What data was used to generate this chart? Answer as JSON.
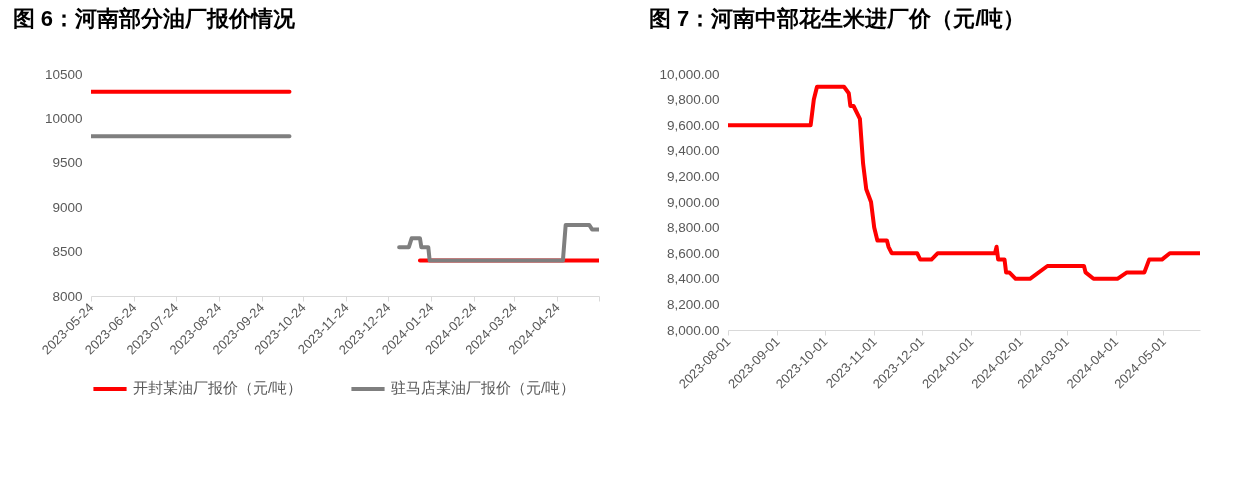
{
  "chart_data": [
    {
      "type": "line",
      "title": "图 6：河南部分油厂报价情况",
      "series": [
        {
          "name": "开封某油厂报价（元/吨）",
          "color": "#ff0000",
          "x": [
            "2023-05-24",
            "2023-10-14",
            "2023-10-15",
            "2024-01-16",
            "2024-05-24"
          ],
          "values": [
            10300,
            10300,
            null,
            8400,
            8400
          ]
        },
        {
          "name": "驻马店某油厂报价（元/吨）",
          "color": "#7f7f7f",
          "x": [
            "2023-05-24",
            "2023-10-14",
            "2023-10-15",
            "2024-01-01",
            "2024-01-08",
            "2024-01-10",
            "2024-01-16",
            "2024-01-17",
            "2024-01-22",
            "2024-01-23",
            "2024-04-28",
            "2024-04-30",
            "2024-05-17",
            "2024-05-19",
            "2024-05-24"
          ],
          "values": [
            9800,
            9800,
            null,
            8550,
            8550,
            8650,
            8650,
            8550,
            8550,
            8400,
            8400,
            8800,
            8800,
            8750,
            8750
          ]
        }
      ],
      "xlim": [
        "2023-05-24",
        "2024-05-24"
      ],
      "xticks": [
        "2023-05-24",
        "2023-06-24",
        "2023-07-24",
        "2023-08-24",
        "2023-09-24",
        "2023-10-24",
        "2023-11-24",
        "2023-12-24",
        "2024-01-24",
        "2024-02-24",
        "2024-03-24",
        "2024-04-24",
        {
          "value": "2024-05-24",
          "label": null
        }
      ],
      "ylim": [
        8000,
        10500
      ],
      "yticks": [
        8000,
        8500,
        9000,
        9500,
        10000,
        10500
      ],
      "legend": "bottom"
    },
    {
      "type": "line",
      "title": "图 7：河南中部花生米进厂价（元/吨）",
      "x": [
        "2023-08-01",
        "2023-09-22",
        "2023-09-24",
        "2023-09-26",
        "2023-10-13",
        "2023-10-16",
        "2023-10-17",
        "2023-10-19",
        "2023-10-23",
        "2023-10-25",
        "2023-10-27",
        "2023-10-30",
        "2023-11-01",
        "2023-11-03",
        "2023-11-09",
        "2023-11-10",
        "2023-11-12",
        "2023-11-28",
        "2023-11-30",
        "2023-12-07",
        "2023-12-11",
        "2024-01-16",
        "2024-01-17",
        "2024-01-18",
        "2024-01-22",
        "2024-01-23",
        "2024-01-25",
        "2024-01-29",
        "2024-02-07",
        "2024-02-18",
        "2024-03-12",
        "2024-03-13",
        "2024-03-18",
        "2024-04-02",
        "2024-04-08",
        "2024-04-19",
        "2024-04-22",
        "2024-04-30",
        "2024-05-05",
        "2024-05-24"
      ],
      "series": [
        {
          "color": "#ff0000",
          "values": [
            9600,
            9600,
            9800,
            9900,
            9900,
            9850,
            9750,
            9750,
            9650,
            9300,
            9100,
            9000,
            8800,
            8700,
            8700,
            8650,
            8600,
            8600,
            8550,
            8550,
            8600,
            8600,
            8650,
            8550,
            8550,
            8450,
            8450,
            8400,
            8400,
            8500,
            8500,
            8450,
            8400,
            8400,
            8450,
            8450,
            8550,
            8550,
            8600,
            8600
          ]
        }
      ],
      "xlim": [
        "2023-08-01",
        "2024-05-24"
      ],
      "xticks": [
        "2023-08-01",
        "2023-09-01",
        "2023-10-01",
        "2023-11-01",
        "2023-12-01",
        "2024-01-01",
        "2024-02-01",
        "2024-03-01",
        "2024-04-01",
        "2024-05-01"
      ],
      "ylim": [
        8000,
        10000
      ],
      "yticks": [
        {
          "value": 8000,
          "label": "8,000.00"
        },
        {
          "value": 8200,
          "label": "8,200.00"
        },
        {
          "value": 8400,
          "label": "8,400.00"
        },
        {
          "value": 8600,
          "label": "8,600.00"
        },
        {
          "value": 8800,
          "label": "8,800.00"
        },
        {
          "value": 9000,
          "label": "9,000.00"
        },
        {
          "value": 9200,
          "label": "9,200.00"
        },
        {
          "value": 9400,
          "label": "9,400.00"
        },
        {
          "value": 9600,
          "label": "9,600.00"
        },
        {
          "value": 9800,
          "label": "9,800.00"
        },
        {
          "value": 10000,
          "label": "10,000.00"
        }
      ],
      "legend": false
    }
  ]
}
